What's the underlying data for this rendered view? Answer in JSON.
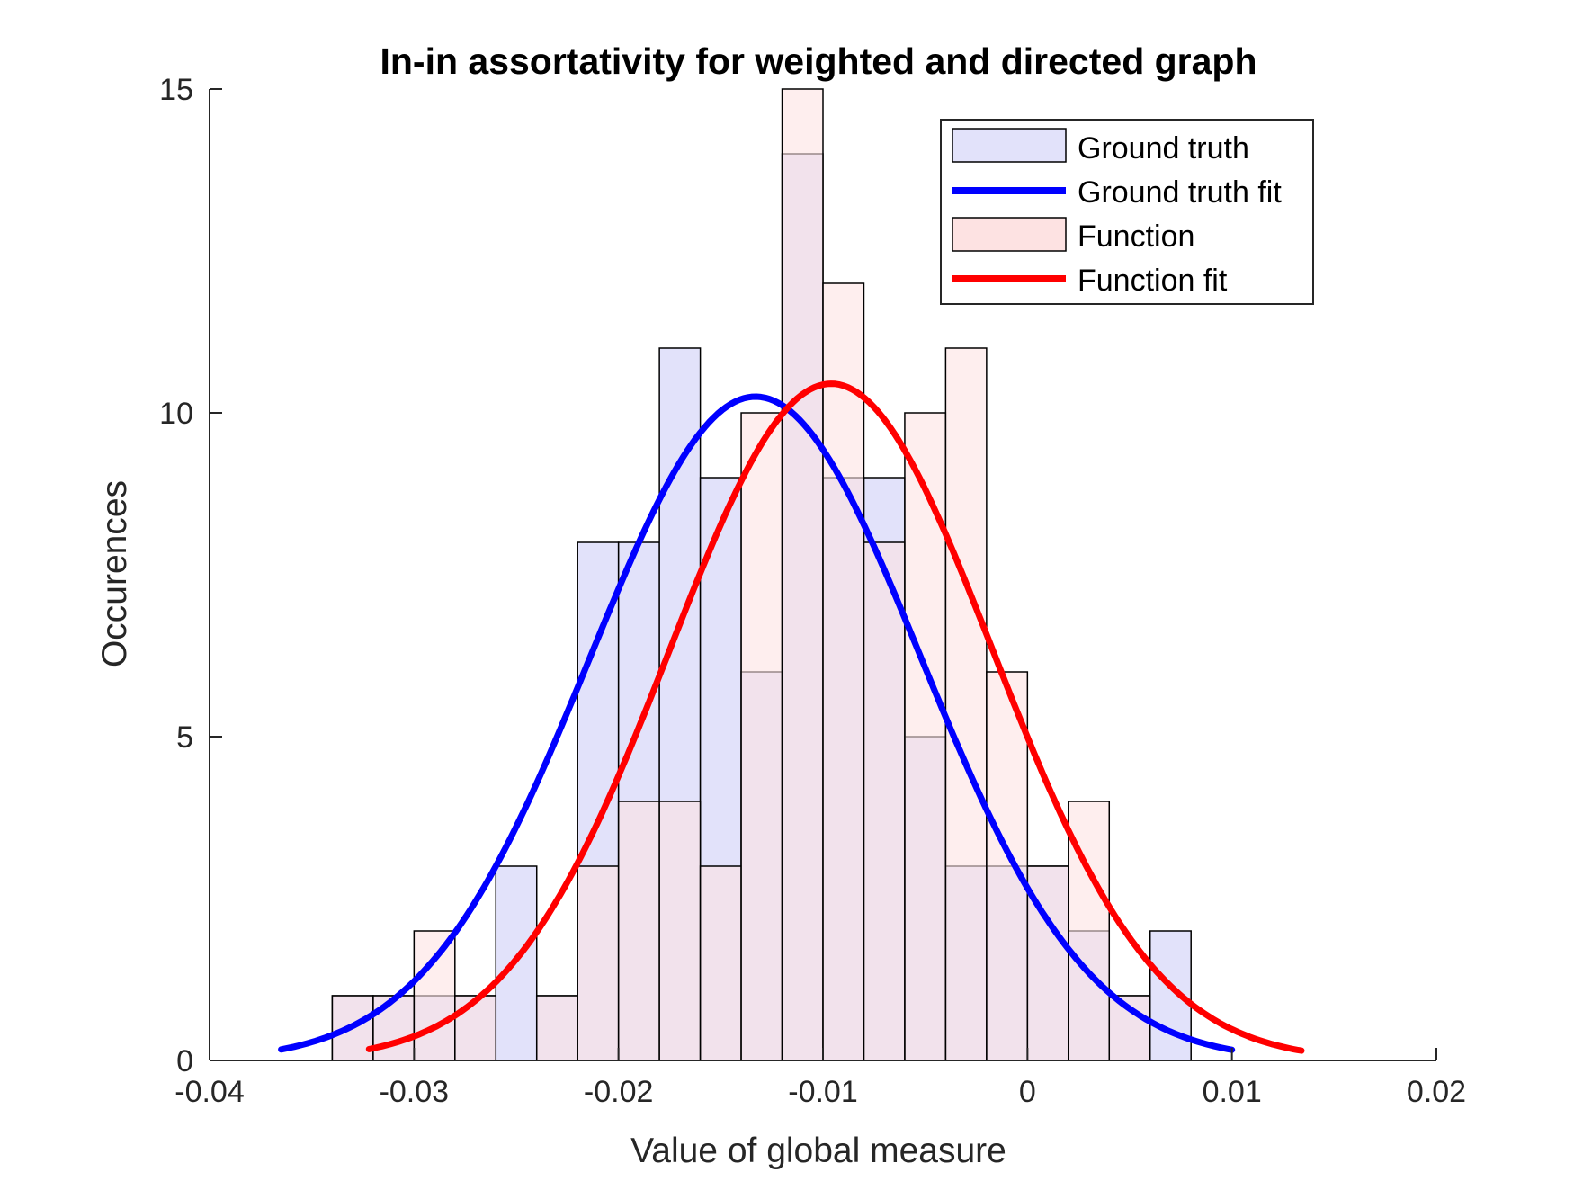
{
  "chart_data": {
    "type": "bar",
    "subtype": "overlapping histogram with normal fit curves",
    "title": "In-in assortativity for weighted and directed graph",
    "xlabel": "Value of global measure",
    "ylabel": "Occurences",
    "xlim": [
      -0.04,
      0.02
    ],
    "ylim": [
      0,
      15
    ],
    "xticks": [
      -0.04,
      -0.03,
      -0.02,
      -0.01,
      0,
      0.01,
      0.02
    ],
    "xtick_labels": [
      "-0.04",
      "-0.03",
      "-0.02",
      "-0.01",
      "0",
      "0.01",
      "0.02"
    ],
    "yticks": [
      0,
      5,
      10,
      15
    ],
    "ytick_labels": [
      "0",
      "5",
      "10",
      "15"
    ],
    "grid": false,
    "legend_position": "top-right",
    "series": [
      {
        "name": "Ground truth",
        "kind": "histogram",
        "color": "#e2e2fa",
        "bin_width": 0.002,
        "bins": [
          {
            "x0": -0.034,
            "count": 1
          },
          {
            "x0": -0.032,
            "count": 1
          },
          {
            "x0": -0.03,
            "count": 1
          },
          {
            "x0": -0.028,
            "count": 1
          },
          {
            "x0": -0.026,
            "count": 3
          },
          {
            "x0": -0.024,
            "count": 1
          },
          {
            "x0": -0.022,
            "count": 8
          },
          {
            "x0": -0.02,
            "count": 8
          },
          {
            "x0": -0.018,
            "count": 11
          },
          {
            "x0": -0.016,
            "count": 9
          },
          {
            "x0": -0.014,
            "count": 6
          },
          {
            "x0": -0.012,
            "count": 14
          },
          {
            "x0": -0.01,
            "count": 9
          },
          {
            "x0": -0.008,
            "count": 9
          },
          {
            "x0": -0.006,
            "count": 5
          },
          {
            "x0": -0.004,
            "count": 3
          },
          {
            "x0": -0.002,
            "count": 3
          },
          {
            "x0": 0.0,
            "count": 3
          },
          {
            "x0": 0.002,
            "count": 2
          },
          {
            "x0": 0.004,
            "count": 1
          },
          {
            "x0": 0.006,
            "count": 2
          }
        ]
      },
      {
        "name": "Ground truth fit",
        "kind": "normal_fit",
        "color": "#0000ff",
        "peak": 10.25,
        "mean": -0.0133,
        "sd": 0.0081,
        "x_range": [
          -0.0365,
          0.01
        ]
      },
      {
        "name": "Function",
        "kind": "histogram",
        "color": "#fde2e2",
        "bin_width": 0.002,
        "bins": [
          {
            "x0": -0.034,
            "count": 1
          },
          {
            "x0": -0.032,
            "count": 1
          },
          {
            "x0": -0.03,
            "count": 2
          },
          {
            "x0": -0.028,
            "count": 1
          },
          {
            "x0": -0.026,
            "count": 0
          },
          {
            "x0": -0.024,
            "count": 1
          },
          {
            "x0": -0.022,
            "count": 3
          },
          {
            "x0": -0.02,
            "count": 4
          },
          {
            "x0": -0.018,
            "count": 4
          },
          {
            "x0": -0.016,
            "count": 3
          },
          {
            "x0": -0.014,
            "count": 10
          },
          {
            "x0": -0.012,
            "count": 15
          },
          {
            "x0": -0.01,
            "count": 12
          },
          {
            "x0": -0.008,
            "count": 8
          },
          {
            "x0": -0.006,
            "count": 10
          },
          {
            "x0": -0.004,
            "count": 11
          },
          {
            "x0": -0.002,
            "count": 6
          },
          {
            "x0": 0.0,
            "count": 3
          },
          {
            "x0": 0.002,
            "count": 4
          },
          {
            "x0": 0.004,
            "count": 1
          }
        ]
      },
      {
        "name": "Function fit",
        "kind": "normal_fit",
        "color": "#ff0000",
        "peak": 10.45,
        "mean": -0.0096,
        "sd": 0.0079,
        "x_range": [
          -0.0322,
          0.0134
        ]
      }
    ]
  }
}
